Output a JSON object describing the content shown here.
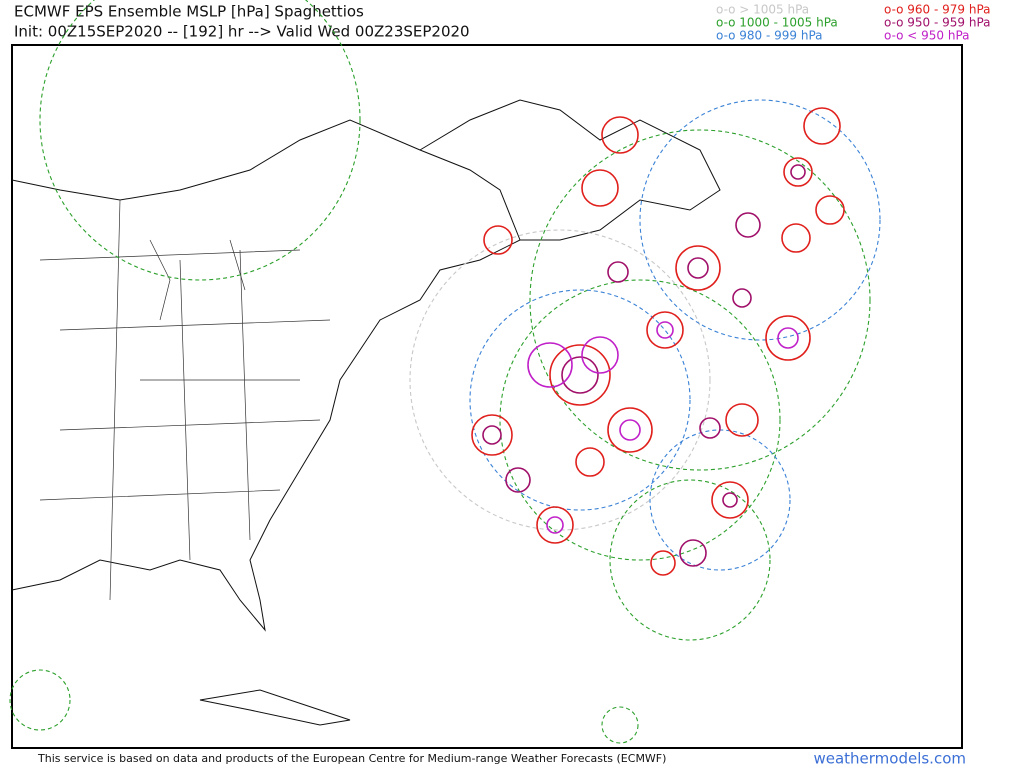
{
  "header": {
    "title": "ECMWF EPS Ensemble MSLP [hPa] Spaghettios",
    "subtitle": "Init: 00Z15SEP2020 -- [192] hr --> Valid Wed 00Z23SEP2020"
  },
  "legend": [
    {
      "label": "o-o > 1005 hPa",
      "color": "#c8c8c8"
    },
    {
      "label": "o-o 1000 - 1005 hPa",
      "color": "#2ca02c"
    },
    {
      "label": "o-o 980 - 999 hPa",
      "color": "#3b82d6"
    },
    {
      "label": "o-o 960 - 979 hPa",
      "color": "#e0201c"
    },
    {
      "label": "o-o 950 - 959 hPa",
      "color": "#a0106a"
    },
    {
      "label": "o-o < 950 hPa",
      "color": "#c020c8"
    }
  ],
  "footer": {
    "credit": "This service is based on data and products of the European Centre for Medium-range Weather Forecasts (ECMWF)",
    "site": "weathermodels.com"
  }
}
